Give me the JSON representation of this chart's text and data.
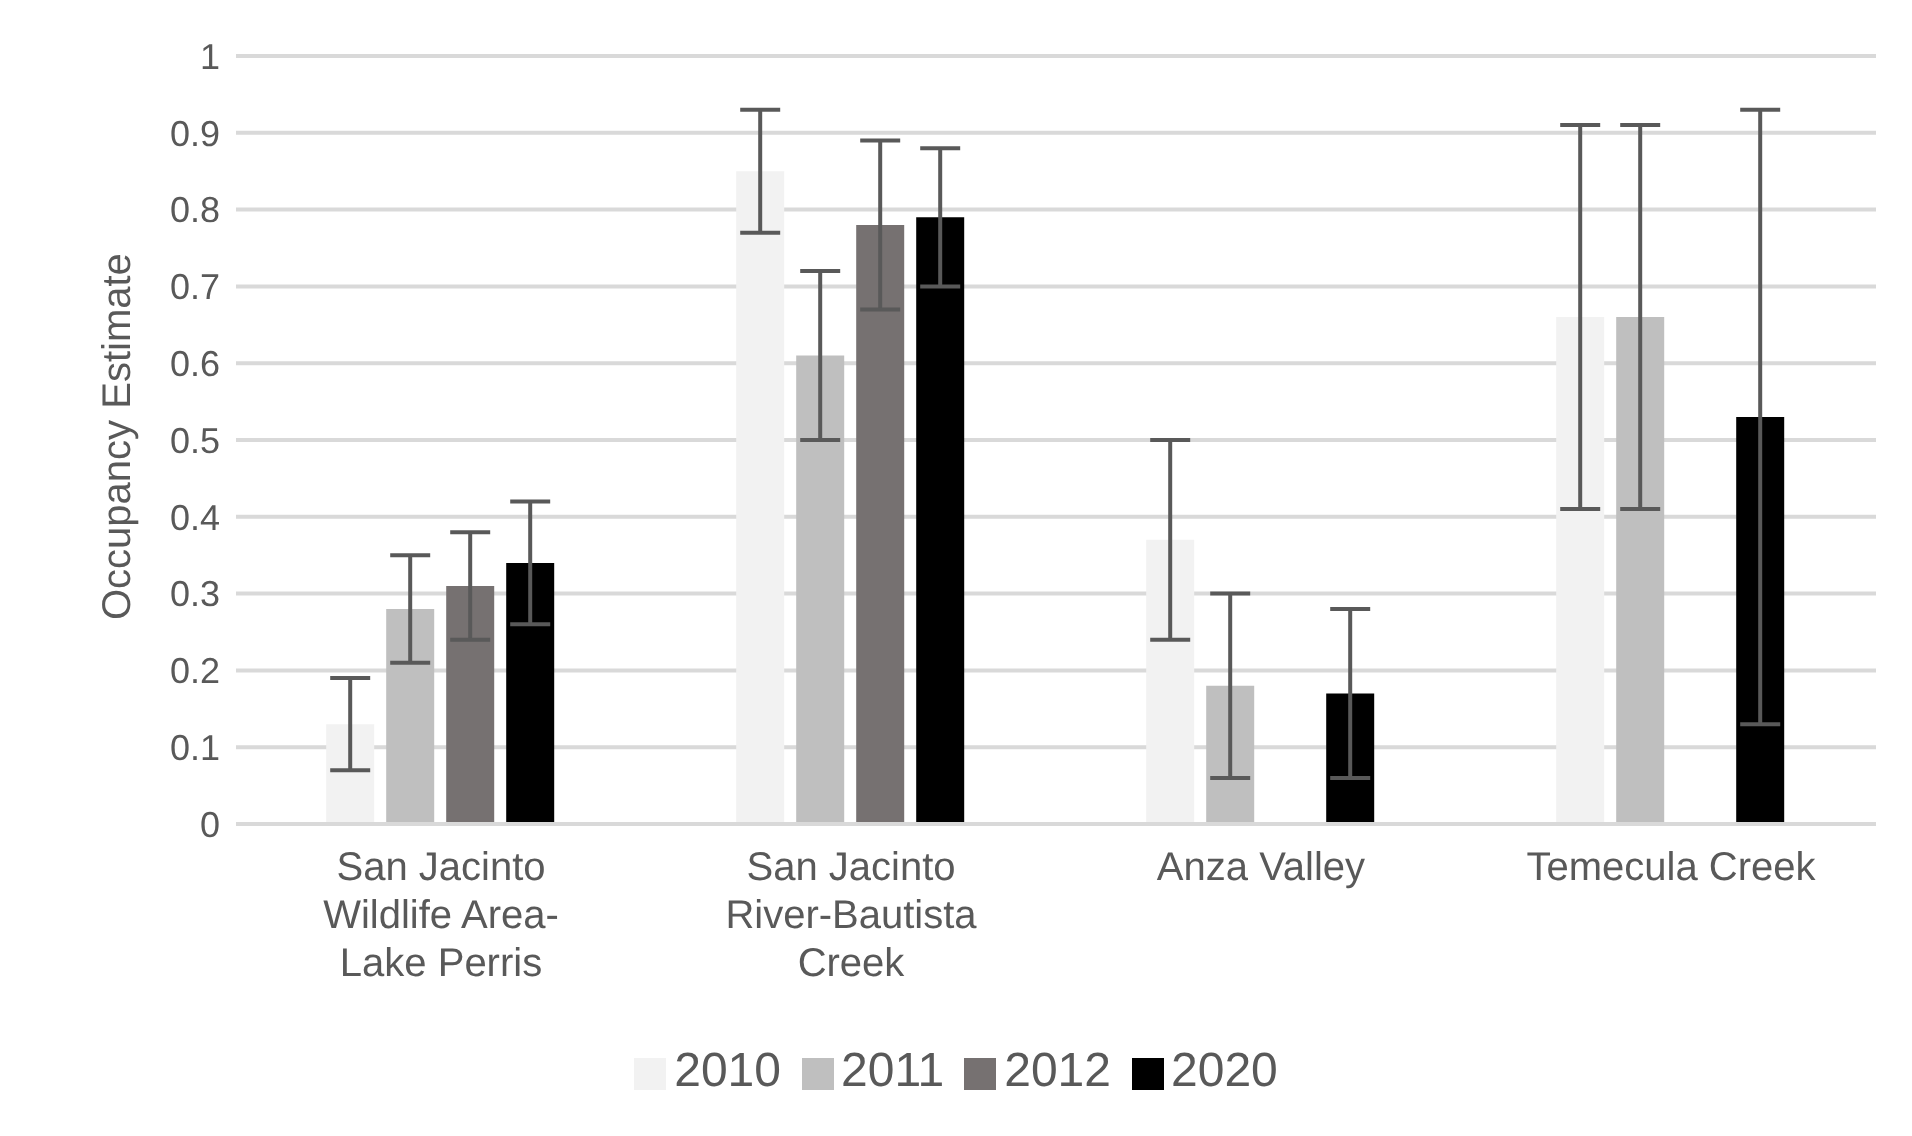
{
  "chart_data": {
    "type": "bar",
    "ylabel": "Occupancy Estimate",
    "categories": [
      "San Jacinto Wildlife Area-Lake Perris",
      "San Jacinto River-Bautista Creek",
      "Anza Valley",
      "Temecula Creek"
    ],
    "series": [
      {
        "name": "2010",
        "color": "#f2f2f2",
        "values": [
          0.13,
          0.85,
          0.37,
          0.66
        ],
        "errors": [
          [
            0.07,
            0.19
          ],
          [
            0.77,
            0.93
          ],
          [
            0.24,
            0.5
          ],
          [
            0.41,
            0.91
          ]
        ]
      },
      {
        "name": "2011",
        "color": "#bfbfbf",
        "values": [
          0.28,
          0.61,
          0.18,
          0.66
        ],
        "errors": [
          [
            0.21,
            0.35
          ],
          [
            0.5,
            0.72
          ],
          [
            0.06,
            0.3
          ],
          [
            0.41,
            0.91
          ]
        ]
      },
      {
        "name": "2012",
        "color": "#767171",
        "values": [
          0.31,
          0.78,
          0,
          0
        ],
        "errors": [
          [
            0.24,
            0.38
          ],
          [
            0.67,
            0.89
          ],
          null,
          null
        ]
      },
      {
        "name": "2020",
        "color": "#000000",
        "values": [
          0.34,
          0.79,
          0.17,
          0.53
        ],
        "errors": [
          [
            0.26,
            0.42
          ],
          [
            0.7,
            0.88
          ],
          [
            0.06,
            0.28
          ],
          [
            0.13,
            0.93
          ]
        ]
      }
    ],
    "ylim": [
      0,
      1
    ],
    "yticks": [
      0,
      0.1,
      0.2,
      0.3,
      0.4,
      0.5,
      0.6,
      0.7,
      0.8,
      0.9,
      1
    ],
    "grid": "y",
    "legend": "bottom"
  }
}
